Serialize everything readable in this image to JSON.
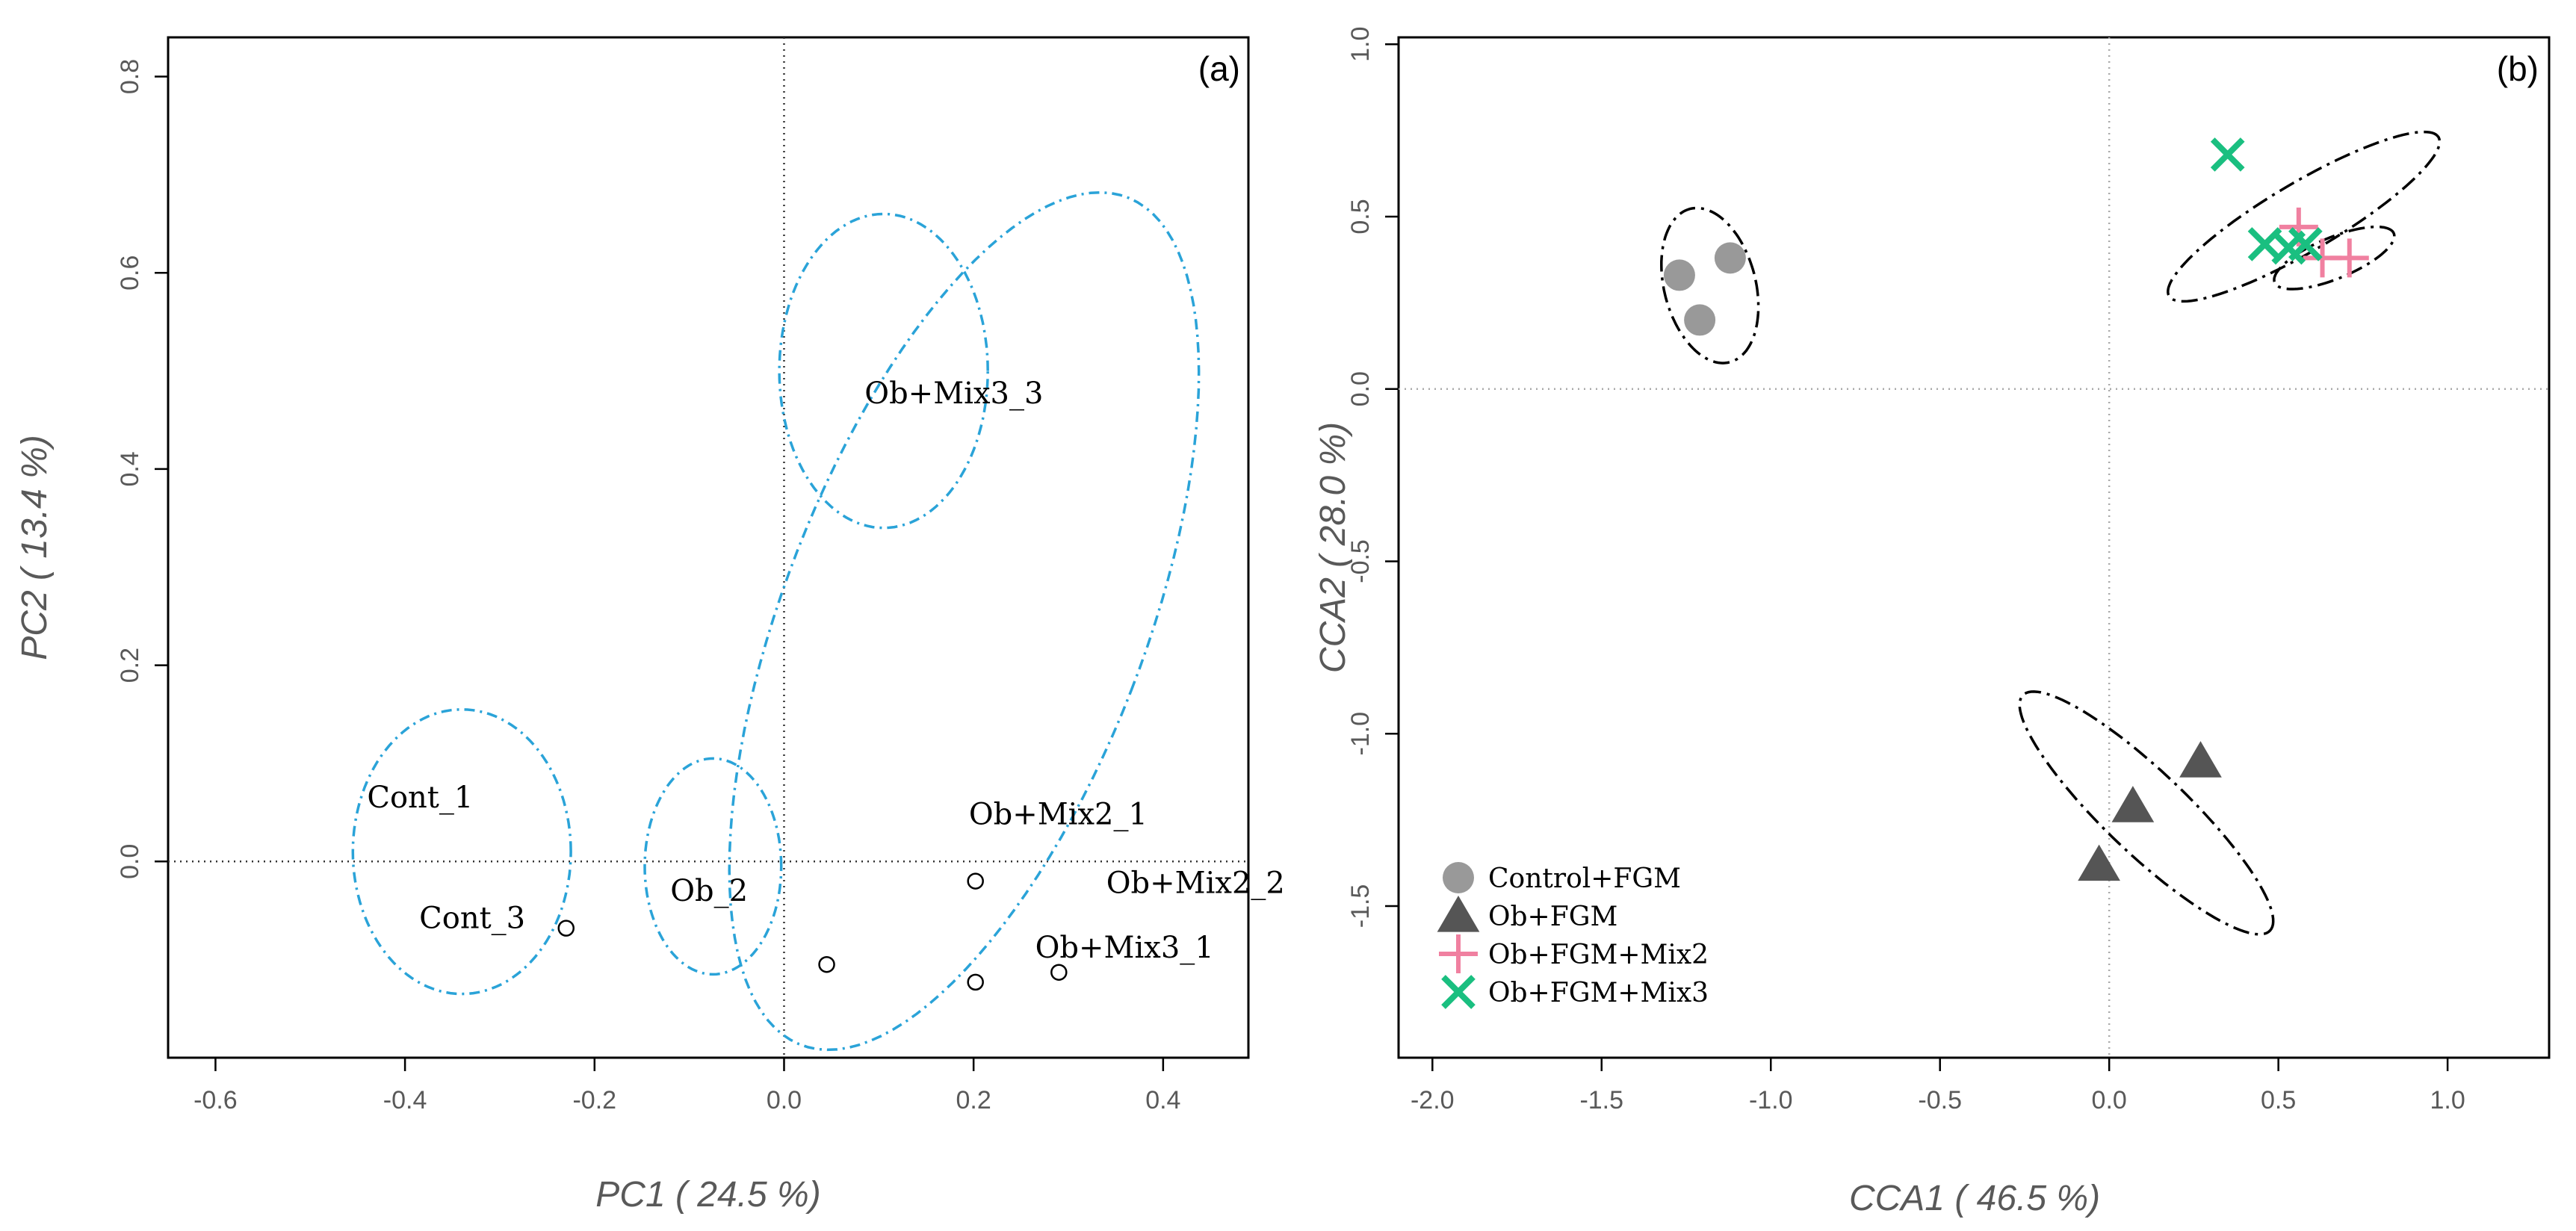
{
  "chart_data": [
    {
      "panel": "a",
      "type": "scatter",
      "title": "",
      "panel_label": "(a)",
      "xlabel": "PC1 ( 24.5 %)",
      "ylabel": "PC2 ( 13.4 %)",
      "xlim": [
        -0.65,
        0.49
      ],
      "ylim": [
        -0.2,
        0.84
      ],
      "xticks": [
        "-0.6",
        "-0.4",
        "-0.2",
        "0.0",
        "0.2",
        "0.4"
      ],
      "yticks": [
        "0.0",
        "0.2",
        "0.4",
        "0.6",
        "0.8"
      ],
      "reference_lines": {
        "x": 0,
        "y": 0
      },
      "points": [
        {
          "x": -0.23,
          "y": -0.068
        },
        {
          "x": 0.045,
          "y": -0.105
        },
        {
          "x": 0.202,
          "y": -0.02
        },
        {
          "x": 0.202,
          "y": -0.123
        },
        {
          "x": 0.29,
          "y": -0.113
        }
      ],
      "labels": [
        {
          "text": "Cont_1",
          "x": -0.44,
          "y": 0.055
        },
        {
          "text": "Cont_3",
          "x": -0.385,
          "y": -0.068
        },
        {
          "text": "Ob_2",
          "x": -0.12,
          "y": -0.04
        },
        {
          "text": "Ob+Mix2_1",
          "x": 0.195,
          "y": 0.038
        },
        {
          "text": "Ob+Mix2_2",
          "x": 0.34,
          "y": -0.032
        },
        {
          "text": "Ob+Mix3_1",
          "x": 0.265,
          "y": -0.098
        },
        {
          "text": "Ob+Mix3_3",
          "x": 0.085,
          "y": 0.467
        }
      ],
      "ellipses": [
        {
          "cx": -0.34,
          "cy": 0.01,
          "rx": 0.115,
          "ry": 0.145,
          "angle": 0
        },
        {
          "cx": -0.075,
          "cy": -0.005,
          "rx": 0.072,
          "ry": 0.11,
          "angle": 0
        },
        {
          "cx": 0.105,
          "cy": 0.5,
          "rx": 0.11,
          "ry": 0.16,
          "angle": 0
        },
        {
          "cx": 0.19,
          "cy": 0.245,
          "rx": 0.19,
          "ry": 0.465,
          "angle": -22
        }
      ]
    },
    {
      "panel": "b",
      "type": "scatter",
      "title": "",
      "panel_label": "(b)",
      "xlabel": "CCA1 ( 46.5 %)",
      "ylabel": "CCA2 ( 28.0 %)",
      "xlim": [
        -2.1,
        1.3
      ],
      "ylim": [
        -1.94,
        1.02
      ],
      "xticks": [
        "-2.0",
        "-1.5",
        "-1.0",
        "-0.5",
        "0.0",
        "0.5",
        "1.0"
      ],
      "yticks": [
        "1.0",
        "0.5",
        "0.0",
        "-0.5",
        "-1.0",
        "-1.5"
      ],
      "reference_lines": {
        "x": 0,
        "y": 0
      },
      "legend": {
        "position": "bottom-left",
        "entries": [
          {
            "label": "Control+FGM",
            "marker": "circle",
            "color": "#999999"
          },
          {
            "label": "Ob+FGM",
            "marker": "triangle",
            "color": "#555555"
          },
          {
            "label": "Ob+FGM+Mix2",
            "marker": "plus",
            "color": "#f080a0"
          },
          {
            "label": "Ob+FGM+Mix3",
            "marker": "x",
            "color": "#1abf80"
          }
        ]
      },
      "series": [
        {
          "name": "Control+FGM",
          "marker": "circle",
          "color": "#999999",
          "points": [
            {
              "x": -1.27,
              "y": 0.33
            },
            {
              "x": -1.12,
              "y": 0.38
            },
            {
              "x": -1.21,
              "y": 0.2
            }
          ]
        },
        {
          "name": "Ob+FGM",
          "marker": "triangle",
          "color": "#555555",
          "points": [
            {
              "x": -0.03,
              "y": -1.38
            },
            {
              "x": 0.07,
              "y": -1.21
            },
            {
              "x": 0.27,
              "y": -1.08
            }
          ]
        },
        {
          "name": "Ob+FGM+Mix2",
          "marker": "plus",
          "color": "#f080a0",
          "points": [
            {
              "x": 0.56,
              "y": 0.47
            },
            {
              "x": 0.63,
              "y": 0.38
            },
            {
              "x": 0.71,
              "y": 0.38
            }
          ]
        },
        {
          "name": "Ob+FGM+Mix3",
          "marker": "x",
          "color": "#1abf80",
          "points": [
            {
              "x": 0.35,
              "y": 0.68
            },
            {
              "x": 0.46,
              "y": 0.42
            },
            {
              "x": 0.53,
              "y": 0.41
            },
            {
              "x": 0.58,
              "y": 0.42
            }
          ]
        }
      ],
      "ellipses": [
        {
          "cx": -1.18,
          "cy": 0.3,
          "rx": 0.135,
          "ry": 0.23,
          "angle": 15
        },
        {
          "cx": 0.11,
          "cy": -1.23,
          "rx": 0.5,
          "ry": 0.12,
          "angle": -43
        },
        {
          "cx": 0.575,
          "cy": 0.5,
          "rx": 0.46,
          "ry": 0.1,
          "angle": 30
        },
        {
          "cx": 0.665,
          "cy": 0.38,
          "rx": 0.19,
          "ry": 0.06,
          "angle": 22
        }
      ]
    }
  ]
}
